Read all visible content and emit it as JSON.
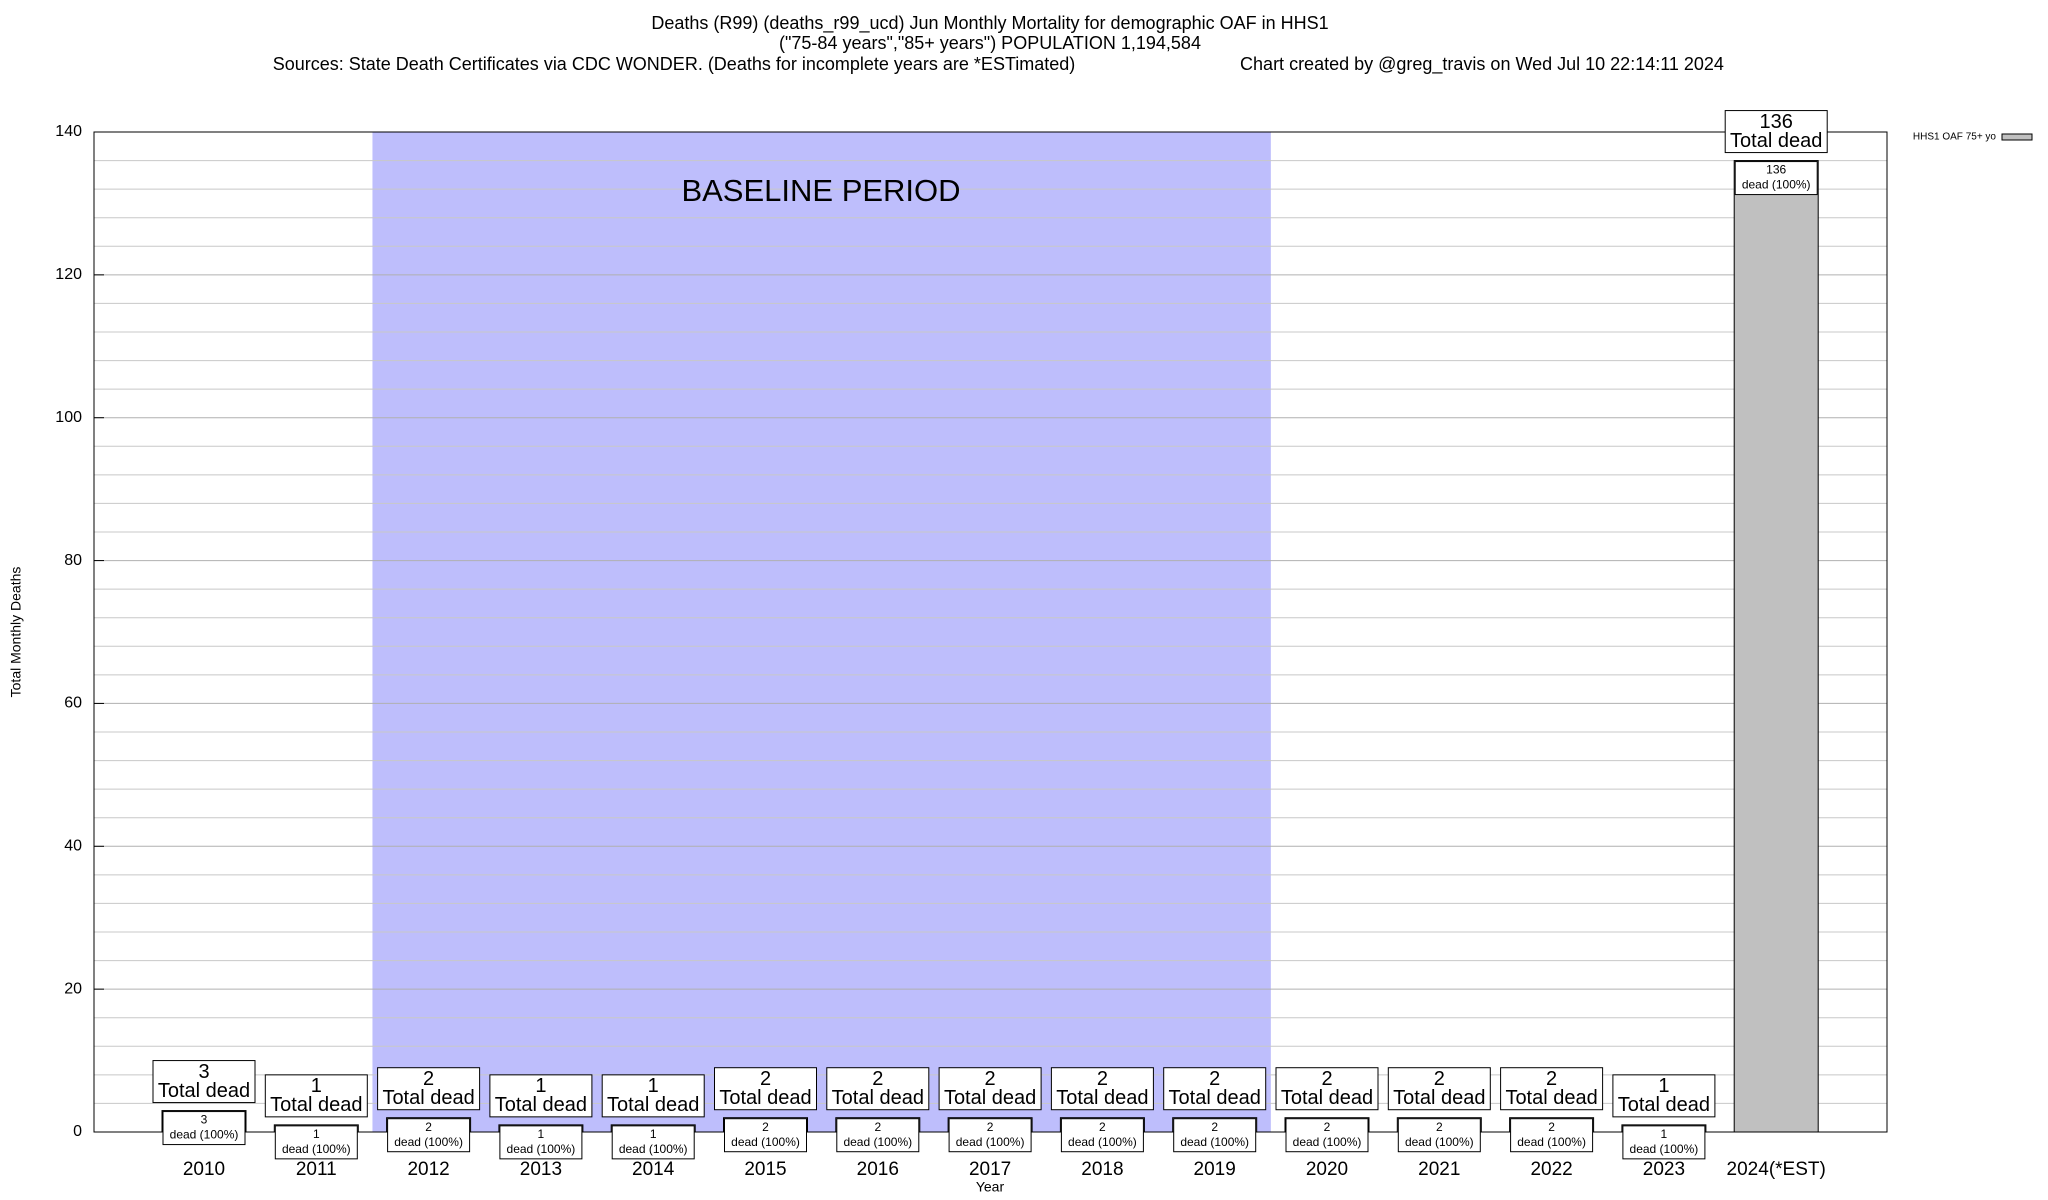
{
  "chart_data": {
    "type": "bar",
    "title": "Deaths (R99) (deaths_r99_ucd) Jun Monthly Mortality for demographic OAF in HHS1",
    "subtitle": "(\"75-84 years\",\"85+ years\") POPULATION 1,194,584",
    "source": "Sources: State Death Certificates via CDC WONDER. (Deaths for incomplete years are *ESTimated)",
    "credit": "Chart created by @greg_travis on Wed Jul 10 22:14:11 2024",
    "x_label": "Year",
    "y_label": "Total Monthly Deaths",
    "categories": [
      "2010",
      "2011",
      "2012",
      "2013",
      "2014",
      "2015",
      "2016",
      "2017",
      "2018",
      "2019",
      "2020",
      "2021",
      "2022",
      "2023",
      "2024(*EST)"
    ],
    "series": [
      {
        "name": "HHS1 OAF 75+ yo",
        "color": "#c0c0c0",
        "values": [
          3,
          1,
          2,
          1,
          1,
          2,
          2,
          2,
          2,
          2,
          2,
          2,
          2,
          1,
          136
        ]
      }
    ],
    "total_label": "Total dead",
    "segment_label": "dead (100%)",
    "baseline": {
      "label": "BASELINE PERIOD",
      "start": "2012",
      "end": "2019",
      "color": "#bebefc"
    },
    "ylim": [
      0,
      140
    ],
    "yticks": [
      0,
      20,
      40,
      60,
      80,
      100,
      120,
      140
    ],
    "minor_yticks": [
      4,
      8,
      12,
      16,
      24,
      28,
      32,
      36,
      44,
      48,
      52,
      56,
      64,
      68,
      72,
      76,
      84,
      88,
      92,
      96,
      104,
      108,
      112,
      116,
      124,
      128,
      132,
      136
    ],
    "grid": true,
    "legend": "top-right"
  }
}
